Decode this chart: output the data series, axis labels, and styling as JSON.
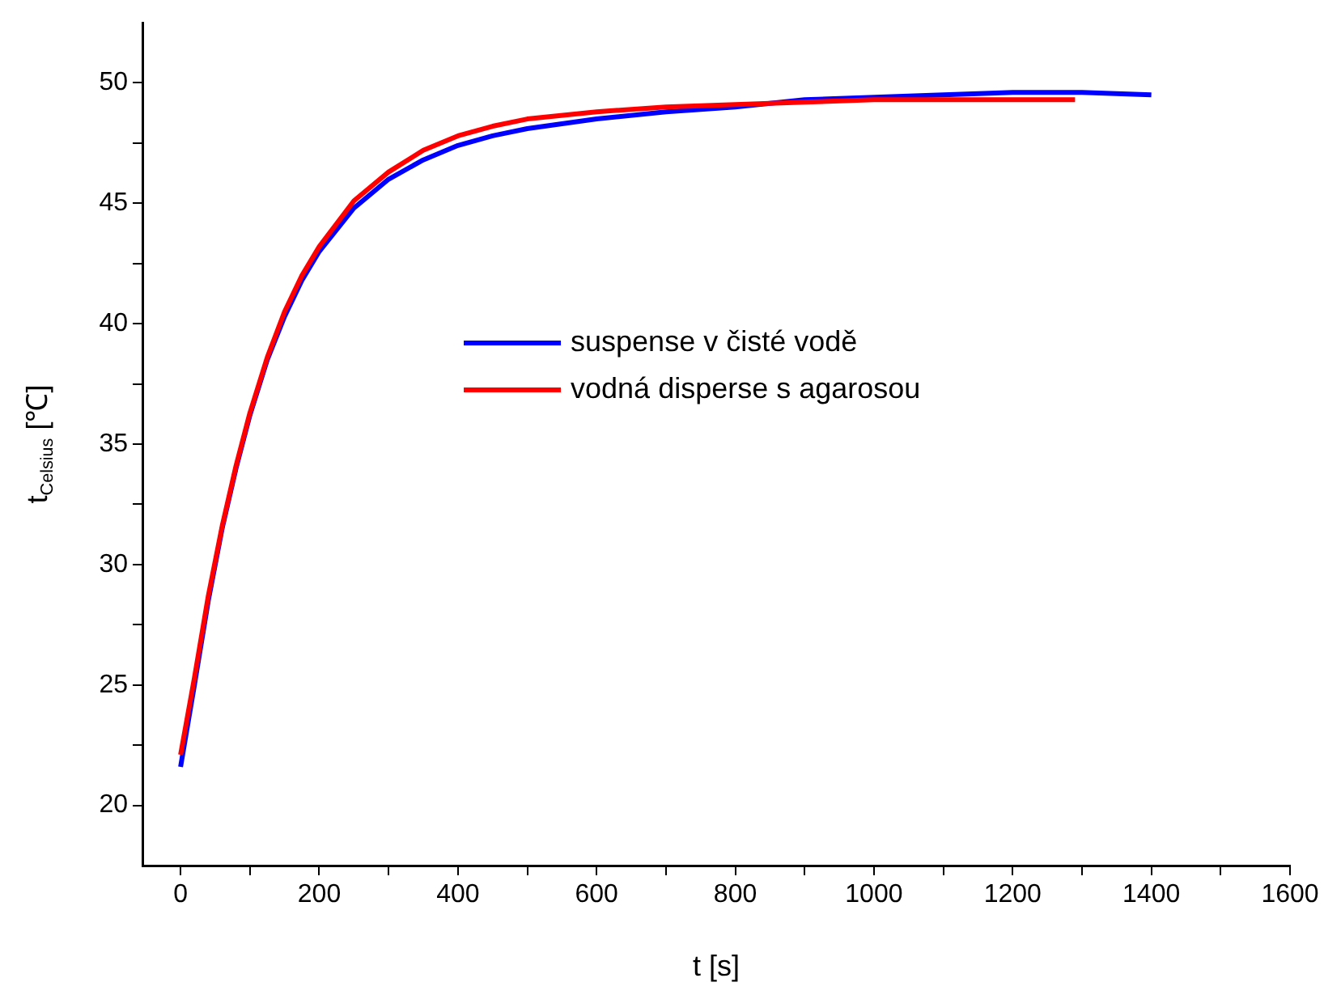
{
  "chart_data": {
    "type": "line",
    "xlabel": "t [s]",
    "ylabel": "t$_{Celsius}$ [℃]",
    "xlim": [
      -55,
      1600
    ],
    "ylim": [
      17.5,
      52.5
    ],
    "xticks": [
      0,
      {
        "value": 100,
        "label": null
      },
      200,
      {
        "value": 300,
        "label": null
      },
      400,
      {
        "value": 500,
        "label": null
      },
      600,
      {
        "value": 700,
        "label": null
      },
      800,
      {
        "value": 900,
        "label": null
      },
      1000,
      {
        "value": 1100,
        "label": null
      },
      1200,
      {
        "value": 1300,
        "label": null
      },
      1400,
      {
        "value": 1500,
        "label": null
      },
      1600
    ],
    "yticks": [
      20,
      {
        "value": 22.5,
        "label": null
      },
      25,
      {
        "value": 27.5,
        "label": null
      },
      30,
      {
        "value": 32.5,
        "label": null
      },
      35,
      {
        "value": 37.5,
        "label": null
      },
      40,
      {
        "value": 42.5,
        "label": null
      },
      45,
      {
        "value": 47.5,
        "label": null
      },
      50
    ],
    "grid": false,
    "legend": "center",
    "marker": "none",
    "line_style": "solid",
    "series": [
      {
        "name": "suspense v čisté vodě",
        "color": "#0000ff",
        "x": [
          0,
          20,
          40,
          60,
          80,
          100,
          125,
          150,
          175,
          200,
          250,
          300,
          350,
          400,
          450,
          500,
          600,
          700,
          800,
          900,
          1000,
          1100,
          1200,
          1300,
          1400
        ],
        "values": [
          21.6,
          25,
          28.5,
          31.5,
          34,
          36.2,
          38.5,
          40.3,
          41.8,
          43,
          44.8,
          46,
          46.8,
          47.4,
          47.8,
          48.1,
          48.5,
          48.8,
          49,
          49.3,
          49.4,
          49.5,
          49.6,
          49.6,
          49.5
        ]
      },
      {
        "name": "vodná disperse s agarosou",
        "color": "#ff0000",
        "x": [
          0,
          20,
          40,
          60,
          80,
          100,
          125,
          150,
          175,
          200,
          250,
          300,
          350,
          400,
          450,
          500,
          600,
          700,
          800,
          900,
          1000,
          1100,
          1200,
          1290
        ],
        "values": [
          22.1,
          25.3,
          28.7,
          31.6,
          34.1,
          36.3,
          38.6,
          40.5,
          42,
          43.2,
          45.1,
          46.3,
          47.2,
          47.8,
          48.2,
          48.5,
          48.8,
          49,
          49.1,
          49.2,
          49.3,
          49.3,
          49.3,
          49.3
        ]
      }
    ]
  }
}
